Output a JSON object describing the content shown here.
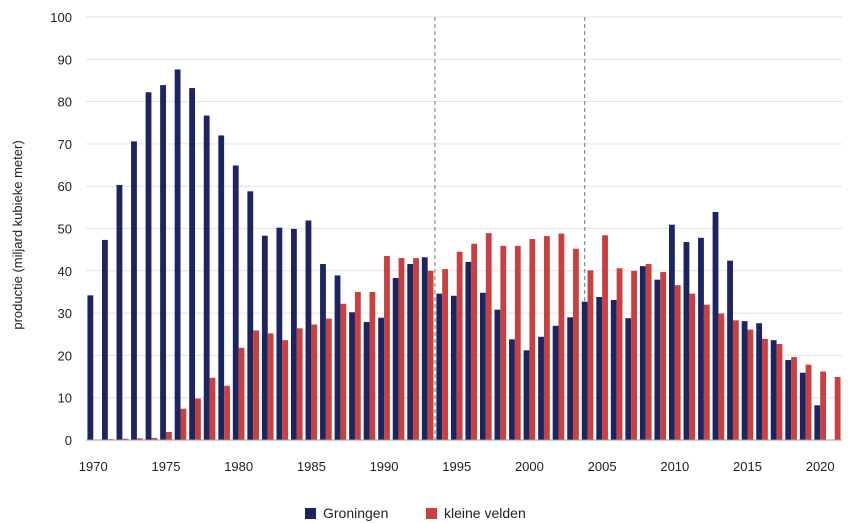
{
  "chart_data": {
    "type": "bar",
    "title": "",
    "xlabel": "",
    "ylabel": "productie (miljard kubieke meter)",
    "ylim": [
      0,
      100
    ],
    "yticks": [
      0,
      10,
      20,
      30,
      40,
      50,
      60,
      70,
      80,
      90,
      100
    ],
    "xlim": [
      1969.5,
      2021.5
    ],
    "xticks": [
      1970,
      1975,
      1980,
      1985,
      1990,
      1995,
      2000,
      2005,
      2010,
      2015,
      2020
    ],
    "grid": "horizontal",
    "legend_position": "bottom-center",
    "reference_lines": [
      1993.5,
      2003.8
    ],
    "x": [
      1970,
      1971,
      1972,
      1973,
      1974,
      1975,
      1976,
      1977,
      1978,
      1979,
      1980,
      1981,
      1982,
      1983,
      1984,
      1985,
      1986,
      1987,
      1988,
      1989,
      1990,
      1991,
      1992,
      1993,
      1994,
      1995,
      1996,
      1997,
      1998,
      1999,
      2000,
      2001,
      2002,
      2003,
      2004,
      2005,
      2006,
      2007,
      2008,
      2009,
      2010,
      2011,
      2012,
      2013,
      2014,
      2015,
      2016,
      2017,
      2018,
      2019,
      2020,
      2021
    ],
    "series": [
      {
        "name": "Groningen",
        "color": "#1c2461",
        "values": [
          34.2,
          47.3,
          60.3,
          70.6,
          82.2,
          83.9,
          87.6,
          83.2,
          76.7,
          72.0,
          64.9,
          58.8,
          48.3,
          50.2,
          49.9,
          51.9,
          41.6,
          38.9,
          30.2,
          27.9,
          28.9,
          38.3,
          41.6,
          43.2,
          34.6,
          34.1,
          42.1,
          34.8,
          30.8,
          23.8,
          21.2,
          24.4,
          27.0,
          29.0,
          32.7,
          33.8,
          33.1,
          28.8,
          41.1,
          37.9,
          50.9,
          46.8,
          47.8,
          53.9,
          42.4,
          28.1,
          27.6,
          23.6,
          18.9,
          15.9,
          8.2,
          0
        ]
      },
      {
        "name": "kleine velden",
        "color": "#c94040",
        "values": [
          0.1,
          0.2,
          0.3,
          0.4,
          0.5,
          1.9,
          7.4,
          9.8,
          14.7,
          12.8,
          21.8,
          25.9,
          25.2,
          23.6,
          26.4,
          27.3,
          28.7,
          32.2,
          35.0,
          35.0,
          43.5,
          43.0,
          43.0,
          40.0,
          40.4,
          44.5,
          46.4,
          48.9,
          45.9,
          45.9,
          47.5,
          48.2,
          48.8,
          45.2,
          40.1,
          48.4,
          40.6,
          40.0,
          41.6,
          39.7,
          36.6,
          34.6,
          32.0,
          29.9,
          28.3,
          26.1,
          23.9,
          22.7,
          19.6,
          17.8,
          16.2,
          14.9
        ]
      }
    ]
  }
}
